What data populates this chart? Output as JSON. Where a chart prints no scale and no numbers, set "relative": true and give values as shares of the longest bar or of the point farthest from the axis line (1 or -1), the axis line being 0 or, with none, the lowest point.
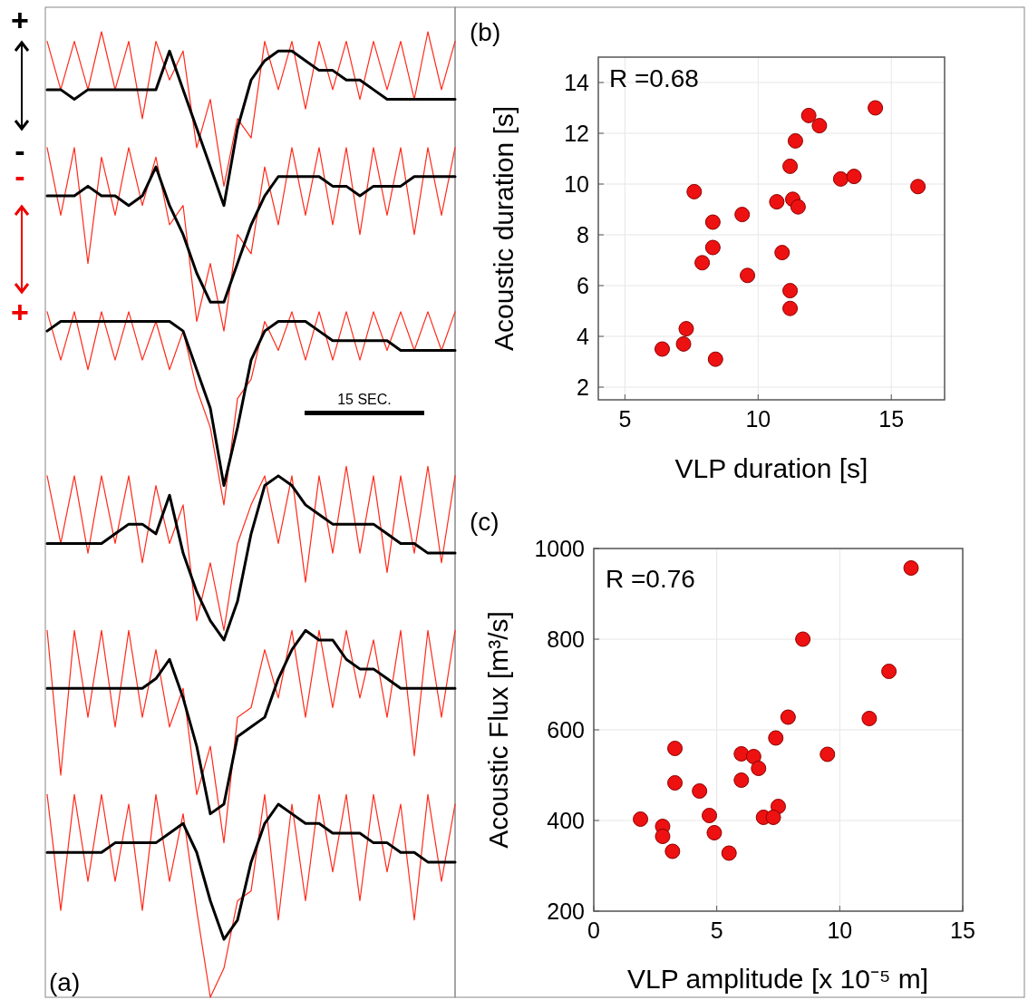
{
  "chart_data": [
    {
      "type": "line",
      "relative": true,
      "categories": [
        null,
        null,
        null,
        null,
        null,
        null,
        null,
        null,
        null,
        null,
        null,
        null,
        null,
        null,
        null,
        null,
        null,
        null,
        null,
        null,
        null,
        null,
        null,
        null,
        null,
        null,
        null,
        null,
        null,
        null,
        null
      ],
      "series": [
        {
          "color": "#ff2a1a",
          "values": [
            0.99,
            0.94,
            0.99,
            0.94,
            1,
            0.94,
            0.99,
            0.91,
            0.99,
            0.95,
            0.98,
            0.88,
            0.93,
            0.84,
            0.91,
            0.89,
            0.99,
            0.94,
            0.99,
            0.92,
            0.99,
            0.94,
            0.99,
            0.93,
            0.99,
            0.94,
            0.99,
            0.93,
            1,
            0.94,
            0.99
          ]
        },
        {
          "color": "#000000",
          "values": [
            0.94,
            0.94,
            0.93,
            0.94,
            0.94,
            0.94,
            0.94,
            0.94,
            0.94,
            0.98,
            0.94,
            0.9,
            0.86,
            0.82,
            0.9,
            0.95,
            0.97,
            0.98,
            0.98,
            0.97,
            0.96,
            0.96,
            0.95,
            0.95,
            0.94,
            0.93,
            0.93,
            0.93,
            0.93,
            0.93,
            0.93
          ]
        },
        {
          "color": "#ff2a1a",
          "values": [
            0.88,
            0.81,
            0.88,
            0.76,
            0.87,
            0.81,
            0.88,
            0.82,
            0.87,
            0.8,
            0.82,
            0.7,
            0.76,
            0.69,
            0.79,
            0.77,
            0.86,
            0.8,
            0.88,
            0.81,
            0.88,
            0.8,
            0.88,
            0.79,
            0.88,
            0.81,
            0.88,
            0.79,
            0.88,
            0.81,
            0.88
          ]
        },
        {
          "color": "#000000",
          "values": [
            0.83,
            0.83,
            0.83,
            0.84,
            0.83,
            0.83,
            0.82,
            0.83,
            0.86,
            0.82,
            0.79,
            0.75,
            0.72,
            0.72,
            0.76,
            0.8,
            0.83,
            0.85,
            0.85,
            0.85,
            0.85,
            0.84,
            0.84,
            0.83,
            0.84,
            0.84,
            0.84,
            0.85,
            0.85,
            0.85,
            0.85
          ]
        },
        {
          "color": "#ff2a1a",
          "values": [
            0.71,
            0.66,
            0.71,
            0.65,
            0.71,
            0.66,
            0.71,
            0.66,
            0.7,
            0.65,
            0.69,
            0.63,
            0.59,
            0.51,
            0.62,
            0.64,
            0.7,
            0.67,
            0.71,
            0.66,
            0.71,
            0.66,
            0.71,
            0.66,
            0.71,
            0.67,
            0.71,
            0.67,
            0.71,
            0.67,
            0.71
          ]
        },
        {
          "color": "#000000",
          "values": [
            0.69,
            0.7,
            0.7,
            0.7,
            0.7,
            0.7,
            0.7,
            0.7,
            0.7,
            0.7,
            0.69,
            0.65,
            0.61,
            0.53,
            0.59,
            0.66,
            0.69,
            0.7,
            0.7,
            0.7,
            0.69,
            0.68,
            0.68,
            0.68,
            0.68,
            0.68,
            0.67,
            0.67,
            0.67,
            0.67,
            0.67
          ]
        },
        {
          "color": "#ff2a1a",
          "values": [
            0.54,
            0.47,
            0.54,
            0.46,
            0.54,
            0.47,
            0.54,
            0.45,
            0.53,
            0.47,
            0.51,
            0.39,
            0.45,
            0.38,
            0.47,
            0.51,
            0.54,
            0.47,
            0.54,
            0.43,
            0.54,
            0.46,
            0.55,
            0.46,
            0.54,
            0.44,
            0.54,
            0.46,
            0.55,
            0.45,
            0.54
          ]
        },
        {
          "color": "#000000",
          "values": [
            0.47,
            0.47,
            0.47,
            0.47,
            0.47,
            0.48,
            0.49,
            0.49,
            0.48,
            0.52,
            0.46,
            0.42,
            0.39,
            0.37,
            0.41,
            0.48,
            0.53,
            0.54,
            0.53,
            0.51,
            0.5,
            0.49,
            0.49,
            0.49,
            0.49,
            0.48,
            0.47,
            0.47,
            0.46,
            0.46,
            0.46
          ]
        },
        {
          "color": "#ff2a1a",
          "values": [
            0.38,
            0.23,
            0.38,
            0.29,
            0.38,
            0.28,
            0.38,
            0.29,
            0.36,
            0.28,
            0.32,
            0.21,
            0.26,
            0.16,
            0.29,
            0.3,
            0.36,
            0.31,
            0.38,
            0.29,
            0.38,
            0.3,
            0.38,
            0.31,
            0.37,
            0.29,
            0.38,
            0.25,
            0.38,
            0.29,
            0.38
          ]
        },
        {
          "color": "#000000",
          "values": [
            0.32,
            0.32,
            0.32,
            0.32,
            0.32,
            0.32,
            0.32,
            0.32,
            0.33,
            0.35,
            0.31,
            0.26,
            0.19,
            0.2,
            0.27,
            0.28,
            0.29,
            0.33,
            0.36,
            0.38,
            0.37,
            0.37,
            0.35,
            0.34,
            0.34,
            0.33,
            0.32,
            0.32,
            0.32,
            0.32,
            0.32
          ]
        },
        {
          "color": "#ff2a1a",
          "values": [
            0.21,
            0.09,
            0.21,
            0.12,
            0.21,
            0.12,
            0.2,
            0.09,
            0.21,
            0.12,
            0.19,
            0.09,
            0,
            0.03,
            0.1,
            0.11,
            0.21,
            0.08,
            0.2,
            0.1,
            0.21,
            0.13,
            0.21,
            0.1,
            0.21,
            0.13,
            0.2,
            0.08,
            0.21,
            0.12,
            0.2
          ]
        },
        {
          "color": "#000000",
          "values": [
            0.15,
            0.15,
            0.15,
            0.15,
            0.15,
            0.16,
            0.16,
            0.16,
            0.16,
            0.17,
            0.18,
            0.15,
            0.1,
            0.06,
            0.08,
            0.14,
            0.18,
            0.2,
            0.19,
            0.18,
            0.18,
            0.17,
            0.17,
            0.17,
            0.16,
            0.16,
            0.15,
            0.15,
            0.14,
            0.14,
            0.14
          ]
        }
      ],
      "annotations": [
        "(a)",
        "15 SEC.",
        "+",
        "-",
        "-",
        "+"
      ]
    },
    {
      "type": "scatter",
      "xlabel": "VLP duration [s]",
      "ylabel": "Acoustic duration [s]",
      "xlim": [
        4,
        17
      ],
      "ylim": [
        1.5,
        15
      ],
      "xticks": [
        5,
        10,
        15
      ],
      "yticks": [
        2,
        4,
        6,
        8,
        10,
        12,
        14
      ],
      "grid": true,
      "marker": "circle",
      "color": "#ee1111",
      "x": [
        14.4,
        11.9,
        12.3,
        11.4,
        11.2,
        13.1,
        13.6,
        16.0,
        7.6,
        10.7,
        11.3,
        11.5,
        9.4,
        8.3,
        8.3,
        7.9,
        10.9,
        9.6,
        11.2,
        11.2,
        7.3,
        7.2,
        6.4,
        8.4
      ],
      "values": [
        13.0,
        12.7,
        12.3,
        11.7,
        10.7,
        10.2,
        10.3,
        9.9,
        9.7,
        9.3,
        9.4,
        9.1,
        8.8,
        8.5,
        7.5,
        6.9,
        7.3,
        6.4,
        5.8,
        5.1,
        4.3,
        3.7,
        3.5,
        3.1
      ],
      "annotations": [
        "(b)",
        "R =0.68"
      ]
    },
    {
      "type": "scatter",
      "xlabel": "VLP amplitude [x 10⁻⁵ m]",
      "ylabel": "Acoustic Flux [m³/s]",
      "xlim": [
        0,
        15
      ],
      "ylim": [
        200,
        1000
      ],
      "xticks": [
        0,
        5,
        10,
        15
      ],
      "yticks": [
        200,
        400,
        600,
        800,
        1000
      ],
      "grid": true,
      "marker": "circle",
      "color": "#ee1111",
      "x": [
        12.9,
        8.5,
        12.0,
        11.2,
        7.9,
        7.4,
        9.5,
        3.3,
        6.0,
        6.5,
        6.7,
        6.0,
        3.3,
        4.3,
        7.5,
        4.7,
        6.9,
        7.3,
        1.9,
        2.8,
        2.8,
        4.9,
        3.2,
        5.5
      ],
      "values": [
        957,
        800,
        729,
        625,
        628,
        582,
        546,
        559,
        547,
        541,
        515,
        489,
        483,
        465,
        431,
        411,
        407,
        407,
        403,
        387,
        365,
        373,
        332,
        328
      ],
      "annotations": [
        "(c)",
        "R =0.76"
      ]
    }
  ]
}
